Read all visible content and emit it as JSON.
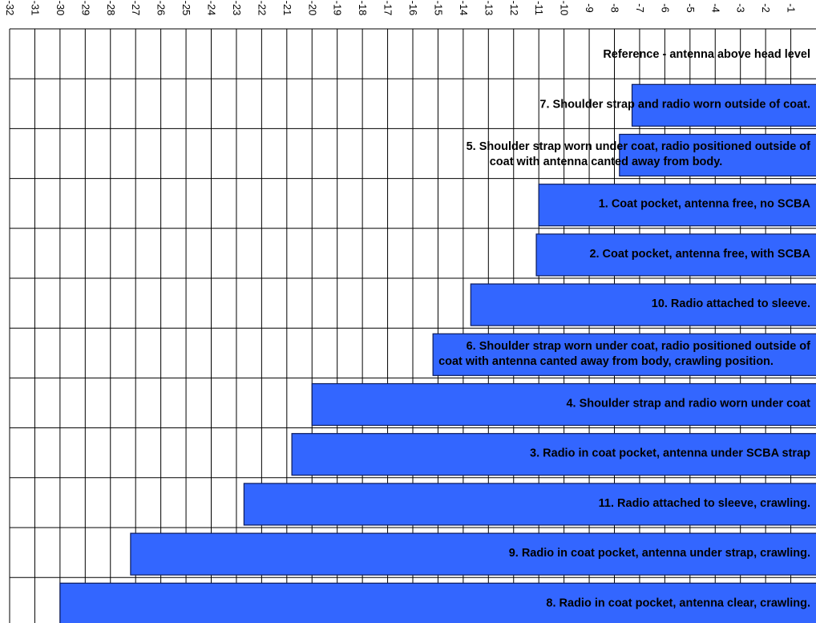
{
  "chart_data": {
    "type": "bar",
    "orientation": "horizontal",
    "xlim": [
      -32,
      0
    ],
    "x_ticks": [
      "-32",
      "-31",
      "-30",
      "-29",
      "-28",
      "-27",
      "-26",
      "-25",
      "-24",
      "-23",
      "-22",
      "-21",
      "-20",
      "-19",
      "-18",
      "-17",
      "-16",
      "-15",
      "-14",
      "-13",
      "-12",
      "-11",
      "-10",
      "-9",
      "-8",
      "-7",
      "-6",
      "-5",
      "-4",
      "-3",
      "-2",
      "-1"
    ],
    "grid": true,
    "categories": [
      "Reference - antenna above head level",
      "7. Shoulder strap and radio worn outside of coat.",
      "5. Shoulder strap worn under coat, radio positioned outside of\ncoat with antenna canted away from body.",
      "1. Coat pocket, antenna free, no SCBA",
      "2. Coat pocket, antenna free, with SCBA",
      "10. Radio attached to sleeve.",
      "6. Shoulder strap worn under coat, radio positioned outside of\ncoat with antenna canted away from body, crawling position.",
      "4. Shoulder strap and radio worn under coat",
      "3. Radio in coat pocket, antenna under SCBA strap",
      "11. Radio attached to sleeve, crawling.",
      "9. Radio in coat pocket, antenna under strap, crawling.",
      "8. Radio in coat pocket, antenna clear, crawling."
    ],
    "values": [
      0,
      -7.3,
      -7.8,
      -11.0,
      -11.1,
      -13.7,
      -15.2,
      -20.0,
      -20.8,
      -22.7,
      -27.2,
      -30.0
    ]
  }
}
